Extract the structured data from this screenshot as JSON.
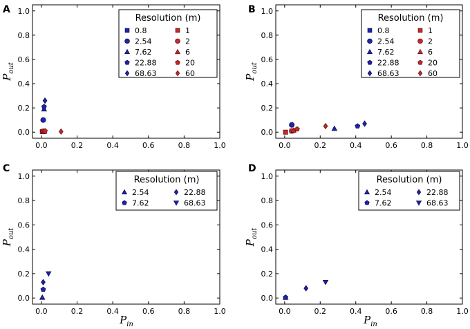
{
  "colors": {
    "blue": "#1f24a8",
    "red": "#c42a2a",
    "red_stroke": "#6a0f0f",
    "blue_stroke": "#0a0d55"
  },
  "chart_data": [
    {
      "id": "A",
      "type": "scatter",
      "panel_label": "A",
      "xlabel_base": "",
      "xlabel_sub": "",
      "ylabel_base": "P",
      "ylabel_sub": "out",
      "xlim": [
        0,
        1
      ],
      "ylim": [
        0,
        1
      ],
      "xticks": [
        "0.0",
        "0.2",
        "0.4",
        "0.6",
        "0.8",
        "1.0"
      ],
      "yticks": [
        "0.0",
        "0.2",
        "0.4",
        "0.6",
        "0.8",
        "1.0"
      ],
      "legend": {
        "title": "Resolution (m)",
        "columns": [
          [
            {
              "label": "0.8",
              "marker": "square",
              "color": "blue"
            },
            {
              "label": "2.54",
              "marker": "circle",
              "color": "blue"
            },
            {
              "label": "7.62",
              "marker": "triangle",
              "color": "blue"
            },
            {
              "label": "22.88",
              "marker": "pentagon",
              "color": "blue"
            },
            {
              "label": "68.63",
              "marker": "diamond",
              "color": "blue"
            }
          ],
          [
            {
              "label": "1",
              "marker": "square",
              "color": "red"
            },
            {
              "label": "2",
              "marker": "circle",
              "color": "red"
            },
            {
              "label": "6",
              "marker": "triangle",
              "color": "red"
            },
            {
              "label": "20",
              "marker": "pentagon",
              "color": "red"
            },
            {
              "label": "60",
              "marker": "diamond",
              "color": "red"
            }
          ]
        ]
      },
      "series": [
        {
          "name": "0.8",
          "marker": "square",
          "color": "blue",
          "x": [
            0.01
          ],
          "y": [
            0.005
          ]
        },
        {
          "name": "2.54",
          "marker": "circle",
          "color": "blue",
          "x": [
            0.01
          ],
          "y": [
            0.1
          ]
        },
        {
          "name": "7.62",
          "marker": "triangle",
          "color": "blue",
          "x": [
            0.015
          ],
          "y": [
            0.19
          ]
        },
        {
          "name": "22.88",
          "marker": "pentagon",
          "color": "blue",
          "x": [
            0.015
          ],
          "y": [
            0.21
          ]
        },
        {
          "name": "68.63",
          "marker": "diamond",
          "color": "blue",
          "x": [
            0.02
          ],
          "y": [
            0.26
          ]
        },
        {
          "name": "1",
          "marker": "square",
          "color": "red",
          "x": [
            0.005
          ],
          "y": [
            0.005
          ]
        },
        {
          "name": "2",
          "marker": "circle",
          "color": "red",
          "x": [
            0.01
          ],
          "y": [
            0.008
          ]
        },
        {
          "name": "6",
          "marker": "triangle",
          "color": "red",
          "x": [
            0.015
          ],
          "y": [
            0.005
          ]
        },
        {
          "name": "20",
          "marker": "pentagon",
          "color": "red",
          "x": [
            0.02
          ],
          "y": [
            0.01
          ]
        },
        {
          "name": "60",
          "marker": "diamond",
          "color": "red",
          "x": [
            0.11
          ],
          "y": [
            0.005
          ]
        }
      ]
    },
    {
      "id": "B",
      "type": "scatter",
      "panel_label": "B",
      "xlabel_base": "",
      "xlabel_sub": "",
      "ylabel_base": "P",
      "ylabel_sub": "out",
      "xlim": [
        0,
        1
      ],
      "ylim": [
        0,
        1
      ],
      "xticks": [
        "0.0",
        "0.2",
        "0.4",
        "0.6",
        "0.8",
        "1.0"
      ],
      "yticks": [
        "0.0",
        "0.2",
        "0.4",
        "0.6",
        "0.8",
        "1.0"
      ],
      "legend": {
        "title": "Resolution (m)",
        "columns": [
          [
            {
              "label": "0.8",
              "marker": "square",
              "color": "blue"
            },
            {
              "label": "2.54",
              "marker": "circle",
              "color": "blue"
            },
            {
              "label": "7.62",
              "marker": "triangle",
              "color": "blue"
            },
            {
              "label": "22.88",
              "marker": "pentagon",
              "color": "blue"
            },
            {
              "label": "68.63",
              "marker": "diamond",
              "color": "blue"
            }
          ],
          [
            {
              "label": "1",
              "marker": "square",
              "color": "red"
            },
            {
              "label": "2",
              "marker": "circle",
              "color": "red"
            },
            {
              "label": "6",
              "marker": "triangle",
              "color": "red"
            },
            {
              "label": "20",
              "marker": "pentagon",
              "color": "red"
            },
            {
              "label": "60",
              "marker": "diamond",
              "color": "red"
            }
          ]
        ]
      },
      "series": [
        {
          "name": "0.8",
          "marker": "square",
          "color": "blue",
          "x": [
            0.04
          ],
          "y": [
            0.01
          ]
        },
        {
          "name": "2.54",
          "marker": "circle",
          "color": "blue",
          "x": [
            0.04
          ],
          "y": [
            0.06
          ]
        },
        {
          "name": "7.62",
          "marker": "triangle",
          "color": "blue",
          "x": [
            0.28
          ],
          "y": [
            0.03
          ]
        },
        {
          "name": "22.88",
          "marker": "pentagon",
          "color": "blue",
          "x": [
            0.41
          ],
          "y": [
            0.05
          ]
        },
        {
          "name": "68.63",
          "marker": "diamond",
          "color": "blue",
          "x": [
            0.45
          ],
          "y": [
            0.07
          ]
        },
        {
          "name": "1",
          "marker": "square",
          "color": "red",
          "x": [
            0.005
          ],
          "y": [
            0.0
          ]
        },
        {
          "name": "2",
          "marker": "circle",
          "color": "red",
          "x": [
            0.04
          ],
          "y": [
            0.01
          ]
        },
        {
          "name": "6",
          "marker": "triangle",
          "color": "red",
          "x": [
            0.05
          ],
          "y": [
            0.015
          ]
        },
        {
          "name": "20",
          "marker": "pentagon",
          "color": "red",
          "x": [
            0.07
          ],
          "y": [
            0.025
          ]
        },
        {
          "name": "60",
          "marker": "diamond",
          "color": "red",
          "x": [
            0.23
          ],
          "y": [
            0.05
          ]
        }
      ]
    },
    {
      "id": "C",
      "type": "scatter",
      "panel_label": "C",
      "xlabel_base": "P",
      "xlabel_sub": "in",
      "ylabel_base": "P",
      "ylabel_sub": "out",
      "xlim": [
        0,
        1
      ],
      "ylim": [
        0,
        1
      ],
      "xticks": [
        "0.0",
        "0.2",
        "0.4",
        "0.6",
        "0.8",
        "1.0"
      ],
      "yticks": [
        "0.0",
        "0.2",
        "0.4",
        "0.6",
        "0.8",
        "1.0"
      ],
      "legend": {
        "title": "Resolution (m)",
        "columns": [
          [
            {
              "label": "2.54",
              "marker": "triangle",
              "color": "blue"
            },
            {
              "label": "7.62",
              "marker": "pentagon",
              "color": "blue"
            }
          ],
          [
            {
              "label": "22.88",
              "marker": "diamond",
              "color": "blue"
            },
            {
              "label": "68.63",
              "marker": "triangle-down",
              "color": "blue"
            }
          ]
        ]
      },
      "series": [
        {
          "name": "2.54",
          "marker": "triangle",
          "color": "blue",
          "x": [
            0.005
          ],
          "y": [
            0.005
          ]
        },
        {
          "name": "7.62",
          "marker": "pentagon",
          "color": "blue",
          "x": [
            0.01
          ],
          "y": [
            0.07
          ]
        },
        {
          "name": "22.88",
          "marker": "diamond",
          "color": "blue",
          "x": [
            0.01
          ],
          "y": [
            0.13
          ]
        },
        {
          "name": "68.63",
          "marker": "triangle-down",
          "color": "blue",
          "x": [
            0.04
          ],
          "y": [
            0.2
          ]
        }
      ]
    },
    {
      "id": "D",
      "type": "scatter",
      "panel_label": "D",
      "xlabel_base": "P",
      "xlabel_sub": "in",
      "ylabel_base": "P",
      "ylabel_sub": "out",
      "xlim": [
        0,
        1
      ],
      "ylim": [
        0,
        1
      ],
      "xticks": [
        "0.0",
        "0.2",
        "0.4",
        "0.6",
        "0.8",
        "1.0"
      ],
      "yticks": [
        "0.0",
        "0.2",
        "0.4",
        "0.6",
        "0.8",
        "1.0"
      ],
      "legend": {
        "title": "Resolution (m)",
        "columns": [
          [
            {
              "label": "2.54",
              "marker": "triangle",
              "color": "blue"
            },
            {
              "label": "7.62",
              "marker": "pentagon",
              "color": "blue"
            }
          ],
          [
            {
              "label": "22.88",
              "marker": "diamond",
              "color": "blue"
            },
            {
              "label": "68.63",
              "marker": "triangle-down",
              "color": "blue"
            }
          ]
        ]
      },
      "series": [
        {
          "name": "2.54",
          "marker": "triangle",
          "color": "blue",
          "x": [
            0.005
          ],
          "y": [
            0.005
          ]
        },
        {
          "name": "7.62",
          "marker": "pentagon",
          "color": "blue",
          "x": [
            0.005
          ],
          "y": [
            0.005
          ]
        },
        {
          "name": "22.88",
          "marker": "diamond",
          "color": "blue",
          "x": [
            0.12
          ],
          "y": [
            0.08
          ]
        },
        {
          "name": "68.63",
          "marker": "triangle-down",
          "color": "blue",
          "x": [
            0.23
          ],
          "y": [
            0.13
          ]
        }
      ]
    }
  ]
}
